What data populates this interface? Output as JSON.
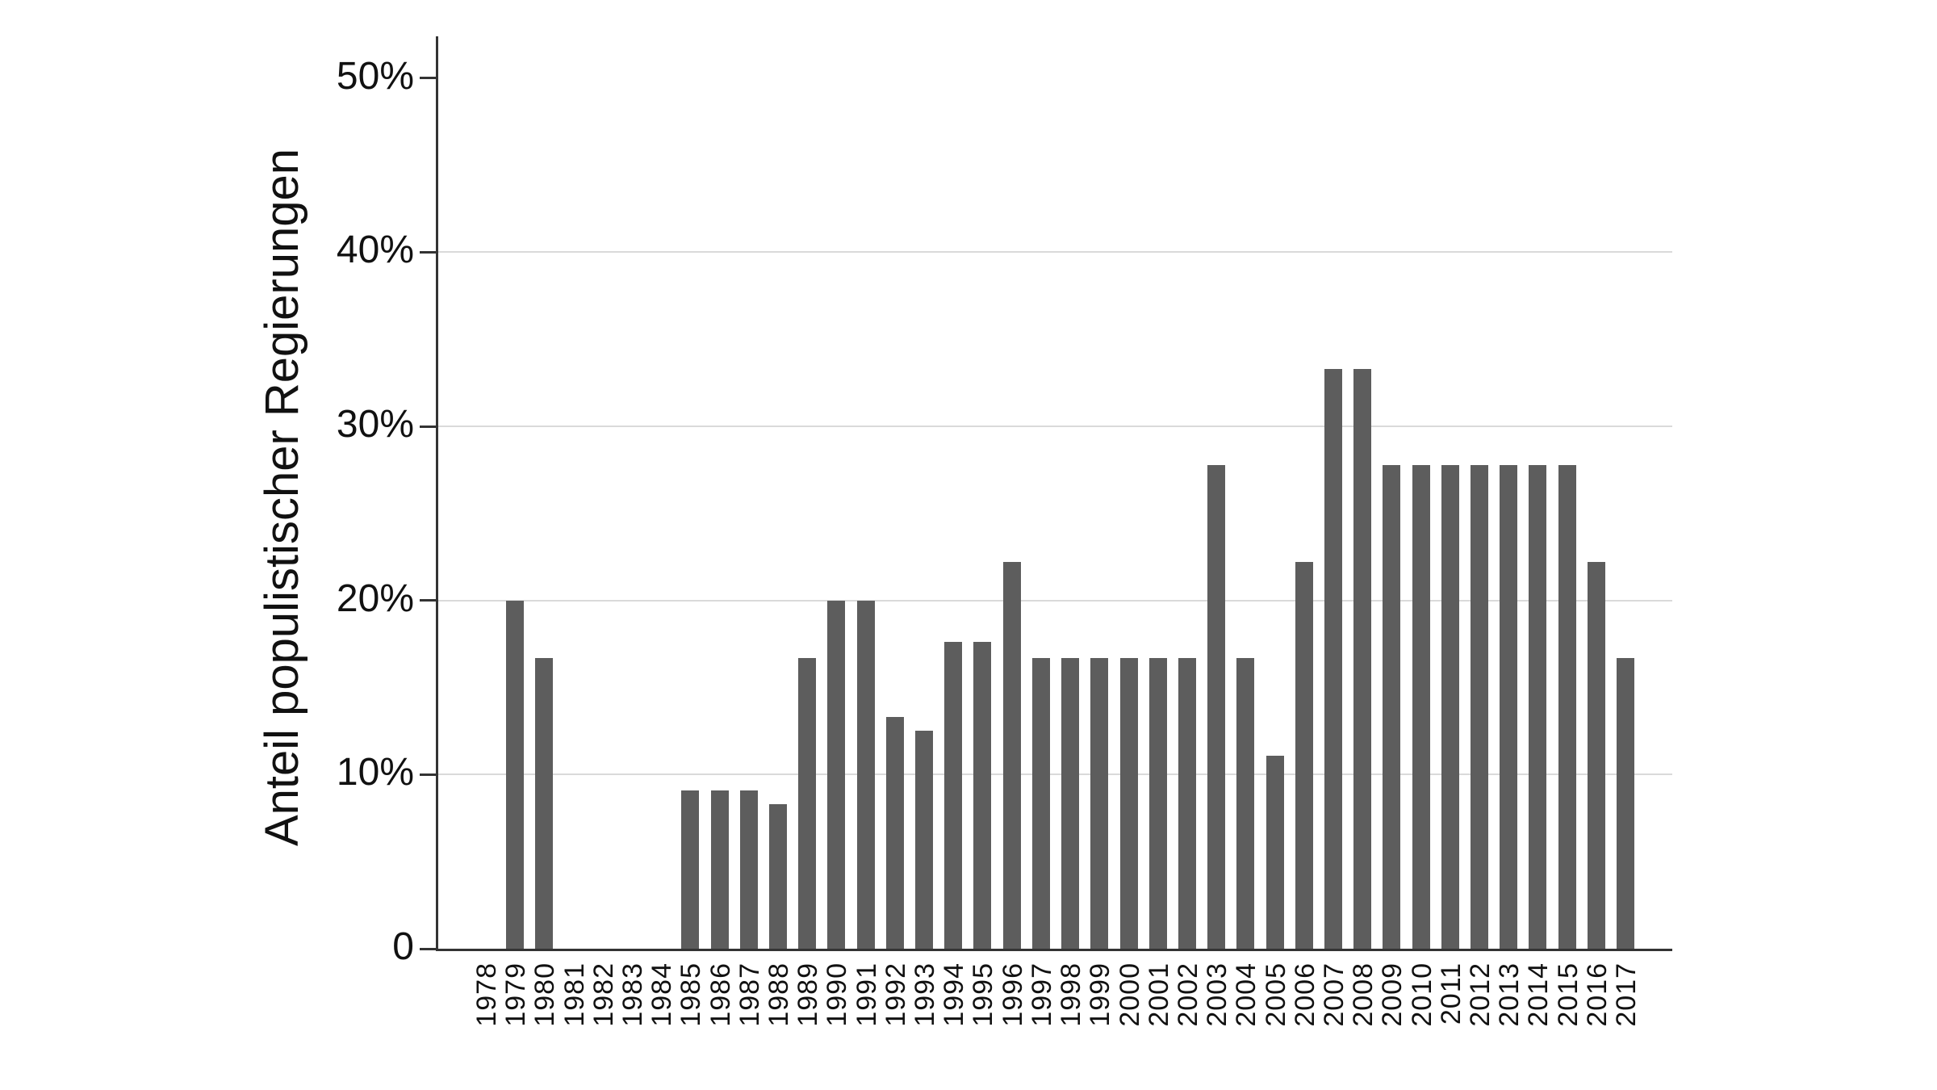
{
  "figure": {
    "background_color": "#ffffff",
    "bar_color": "#5d5d5d",
    "axis_color": "#333333",
    "gridline_color": "#dadada",
    "text_color": "#111111"
  },
  "chart_data": {
    "type": "bar",
    "title": "",
    "xlabel": "",
    "ylabel": "Anteil populistischer Regierungen",
    "legend_position": "none",
    "grid": "horizontal",
    "gridlines_at": [
      10,
      20,
      30,
      40
    ],
    "ylim": [
      0,
      52.4
    ],
    "yticks": [
      {
        "value": 50,
        "label": "50%"
      },
      {
        "value": 40,
        "label": "40%"
      },
      {
        "value": 30,
        "label": "30%"
      },
      {
        "value": 20,
        "label": "20%"
      },
      {
        "value": 10,
        "label": "10%"
      },
      {
        "value": 0,
        "label": "0"
      }
    ],
    "categories": [
      "1978",
      "1979",
      "1980",
      "1981",
      "1982",
      "1983",
      "1984",
      "1985",
      "1986",
      "1987",
      "1988",
      "1989",
      "1990",
      "1991",
      "1992",
      "1993",
      "1994",
      "1995",
      "1996",
      "1997",
      "1998",
      "1999",
      "2000",
      "2001",
      "2002",
      "2003",
      "2004",
      "2005",
      "2006",
      "2007",
      "2008",
      "2009",
      "2010",
      "2011",
      "2012",
      "2013",
      "2014",
      "2015",
      "2016",
      "2017"
    ],
    "values": [
      0,
      20,
      16.7,
      0,
      0,
      0,
      0,
      9.1,
      9.1,
      9.1,
      8.3,
      16.7,
      20,
      20,
      13.3,
      12.5,
      17.6,
      17.6,
      22.2,
      16.7,
      16.7,
      16.7,
      16.7,
      16.7,
      16.7,
      27.8,
      16.7,
      11.1,
      22.2,
      33.3,
      33.3,
      27.8,
      27.8,
      27.8,
      27.8,
      27.8,
      27.8,
      27.8,
      22.2,
      16.7
    ],
    "unit": "%"
  }
}
